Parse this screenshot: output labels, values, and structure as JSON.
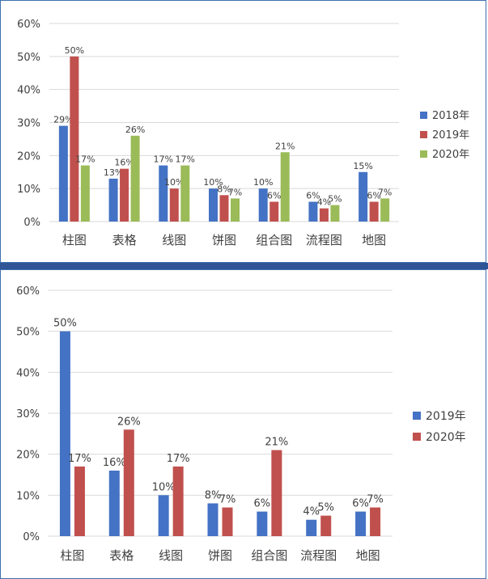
{
  "chart_data": [
    {
      "type": "bar",
      "categories": [
        "柱图",
        "表格",
        "线图",
        "饼图",
        "组合图",
        "流程图",
        "地图"
      ],
      "series": [
        {
          "name": "2018年",
          "values": [
            29,
            13,
            17,
            10,
            10,
            6,
            15
          ],
          "labels": [
            "29%",
            "13%",
            "17%",
            "10%",
            "10%",
            "6%",
            "15%"
          ]
        },
        {
          "name": "2019年",
          "values": [
            50,
            16,
            10,
            8,
            6,
            4,
            6
          ],
          "labels": [
            "50%",
            "16%",
            "10%",
            "8%",
            "6%",
            "4%",
            "6%"
          ]
        },
        {
          "name": "2020年",
          "values": [
            17,
            26,
            17,
            7,
            21,
            5,
            7
          ],
          "labels": [
            "17%",
            "26%",
            "17%",
            "7%",
            "21%",
            "5%",
            "7%"
          ]
        }
      ],
      "ylim": [
        0,
        60
      ],
      "yticks": [
        "0%",
        "10%",
        "20%",
        "30%",
        "40%",
        "50%",
        "60%"
      ],
      "grid": true,
      "legend": "right",
      "colors": [
        "#4472c4",
        "#c0504d",
        "#9bbb59"
      ]
    },
    {
      "type": "bar",
      "categories": [
        "柱图",
        "表格",
        "线图",
        "饼图",
        "组合图",
        "流程图",
        "地图"
      ],
      "series": [
        {
          "name": "2019年",
          "values": [
            50,
            16,
            10,
            8,
            6,
            4,
            6
          ],
          "labels": [
            "50%",
            "16%",
            "10%",
            "8%",
            "6%",
            "4%",
            "6%"
          ]
        },
        {
          "name": "2020年",
          "values": [
            17,
            26,
            17,
            7,
            21,
            5,
            7
          ],
          "labels": [
            "17%",
            "26%",
            "17%",
            "7%",
            "21%",
            "5%",
            "7%"
          ]
        }
      ],
      "ylim": [
        0,
        60
      ],
      "yticks": [
        "0%",
        "10%",
        "20%",
        "30%",
        "40%",
        "50%",
        "60%"
      ],
      "grid": true,
      "legend": "right",
      "colors": [
        "#4472c4",
        "#c0504d"
      ]
    }
  ]
}
